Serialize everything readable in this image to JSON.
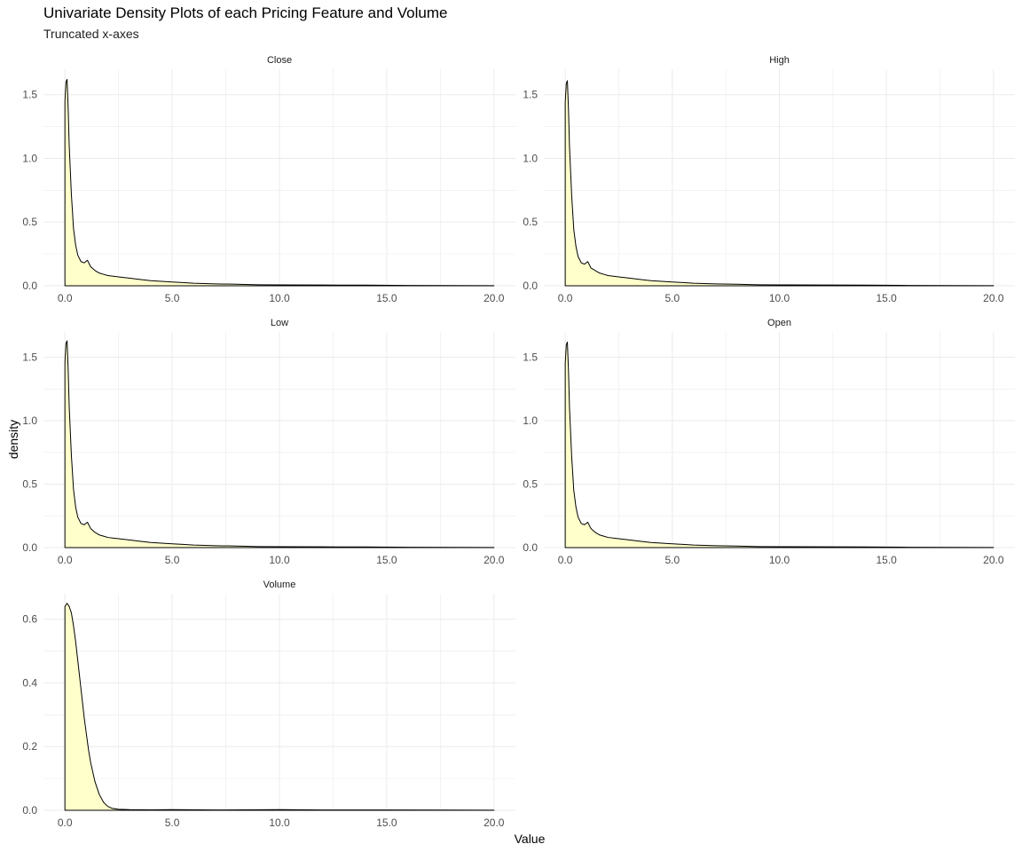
{
  "title": "Univariate Density Plots of each Pricing Feature and Volume",
  "subtitle": "Truncated x-axes",
  "colors": {
    "fill": "#ffffcc",
    "line": "#000000",
    "grid": "#ebebeb",
    "tick_text": "#4d4d4d"
  },
  "chart_data": {
    "type": "area",
    "layout": "facet-wrap",
    "xlabel": "Value",
    "ylabel": "density",
    "grid": true,
    "legend": "none",
    "x_ticks": [
      "0.0",
      "5.0",
      "10.0",
      "15.0",
      "20.0"
    ],
    "xlim": [
      -1,
      21
    ],
    "panels": [
      {
        "name": "Close",
        "ylim": [
          0,
          1.7
        ],
        "y_ticks": [
          0,
          0.5,
          1.0,
          1.5
        ],
        "y_tick_labels": [
          "0.0",
          "0.5",
          "1.0",
          "1.5"
        ],
        "x": [
          0,
          0.05,
          0.1,
          0.15,
          0.2,
          0.3,
          0.4,
          0.5,
          0.6,
          0.75,
          0.9,
          1.05,
          1.2,
          1.4,
          1.6,
          1.8,
          2.0,
          2.5,
          3.0,
          3.5,
          4.0,
          4.5,
          5.0,
          5.5,
          6.0,
          7.0,
          8.0,
          9.0,
          10.0,
          12.0,
          14.0,
          16.0,
          18.0,
          20.0
        ],
        "y": [
          1.45,
          1.6,
          1.62,
          1.4,
          1.1,
          0.72,
          0.45,
          0.32,
          0.24,
          0.19,
          0.18,
          0.2,
          0.15,
          0.12,
          0.1,
          0.09,
          0.08,
          0.07,
          0.06,
          0.05,
          0.04,
          0.035,
          0.03,
          0.025,
          0.02,
          0.015,
          0.012,
          0.008,
          0.007,
          0.006,
          0.005,
          0.003,
          0.002,
          0.001
        ]
      },
      {
        "name": "High",
        "ylim": [
          0,
          1.7
        ],
        "y_ticks": [
          0,
          0.5,
          1.0,
          1.5
        ],
        "y_tick_labels": [
          "0.0",
          "0.5",
          "1.0",
          "1.5"
        ],
        "x": [
          0,
          0.05,
          0.1,
          0.15,
          0.2,
          0.3,
          0.4,
          0.5,
          0.6,
          0.75,
          0.9,
          1.05,
          1.2,
          1.4,
          1.6,
          1.8,
          2.0,
          2.5,
          3.0,
          3.5,
          4.0,
          4.5,
          5.0,
          5.5,
          6.0,
          7.0,
          8.0,
          9.0,
          10.0,
          12.0,
          14.0,
          16.0,
          18.0,
          20.0
        ],
        "y": [
          1.44,
          1.59,
          1.61,
          1.39,
          1.09,
          0.71,
          0.44,
          0.31,
          0.23,
          0.18,
          0.17,
          0.19,
          0.14,
          0.12,
          0.1,
          0.09,
          0.08,
          0.07,
          0.06,
          0.05,
          0.04,
          0.035,
          0.03,
          0.025,
          0.02,
          0.015,
          0.012,
          0.008,
          0.007,
          0.006,
          0.005,
          0.003,
          0.002,
          0.001
        ]
      },
      {
        "name": "Low",
        "ylim": [
          0,
          1.7
        ],
        "y_ticks": [
          0,
          0.5,
          1.0,
          1.5
        ],
        "y_tick_labels": [
          "0.0",
          "0.5",
          "1.0",
          "1.5"
        ],
        "x": [
          0,
          0.05,
          0.1,
          0.15,
          0.2,
          0.3,
          0.4,
          0.5,
          0.6,
          0.75,
          0.9,
          1.05,
          1.2,
          1.4,
          1.6,
          1.8,
          2.0,
          2.5,
          3.0,
          3.5,
          4.0,
          4.5,
          5.0,
          5.5,
          6.0,
          7.0,
          8.0,
          9.0,
          10.0,
          12.0,
          14.0,
          16.0,
          18.0,
          20.0
        ],
        "y": [
          1.46,
          1.61,
          1.63,
          1.41,
          1.11,
          0.73,
          0.46,
          0.32,
          0.24,
          0.19,
          0.18,
          0.2,
          0.15,
          0.12,
          0.1,
          0.09,
          0.08,
          0.07,
          0.06,
          0.05,
          0.04,
          0.035,
          0.03,
          0.025,
          0.02,
          0.015,
          0.012,
          0.008,
          0.007,
          0.006,
          0.005,
          0.003,
          0.002,
          0.001
        ]
      },
      {
        "name": "Open",
        "ylim": [
          0,
          1.7
        ],
        "y_ticks": [
          0,
          0.5,
          1.0,
          1.5
        ],
        "y_tick_labels": [
          "0.0",
          "0.5",
          "1.0",
          "1.5"
        ],
        "x": [
          0,
          0.05,
          0.1,
          0.15,
          0.2,
          0.3,
          0.4,
          0.5,
          0.6,
          0.75,
          0.9,
          1.05,
          1.2,
          1.4,
          1.6,
          1.8,
          2.0,
          2.5,
          3.0,
          3.5,
          4.0,
          4.5,
          5.0,
          5.5,
          6.0,
          7.0,
          8.0,
          9.0,
          10.0,
          12.0,
          14.0,
          16.0,
          18.0,
          20.0
        ],
        "y": [
          1.45,
          1.6,
          1.62,
          1.4,
          1.1,
          0.72,
          0.45,
          0.32,
          0.24,
          0.19,
          0.18,
          0.2,
          0.15,
          0.12,
          0.1,
          0.09,
          0.08,
          0.07,
          0.06,
          0.05,
          0.04,
          0.035,
          0.03,
          0.025,
          0.02,
          0.015,
          0.012,
          0.008,
          0.007,
          0.006,
          0.005,
          0.003,
          0.002,
          0.001
        ]
      },
      {
        "name": "Volume",
        "ylim": [
          0,
          0.68
        ],
        "y_ticks": [
          0,
          0.2,
          0.4,
          0.6
        ],
        "y_tick_labels": [
          "0.0",
          "0.2",
          "0.4",
          "0.6"
        ],
        "x": [
          0,
          0.1,
          0.2,
          0.3,
          0.4,
          0.5,
          0.6,
          0.7,
          0.8,
          0.9,
          1.0,
          1.1,
          1.2,
          1.4,
          1.6,
          1.8,
          2.0,
          2.2,
          2.5,
          3.0,
          4.0,
          5.0,
          7.0,
          10.0,
          12.0,
          15.0,
          20.0
        ],
        "y": [
          0.64,
          0.65,
          0.64,
          0.62,
          0.58,
          0.53,
          0.47,
          0.41,
          0.35,
          0.29,
          0.24,
          0.19,
          0.15,
          0.09,
          0.05,
          0.025,
          0.012,
          0.006,
          0.003,
          0.002,
          0.0015,
          0.002,
          0.001,
          0.002,
          0.001,
          0.001,
          0.0005
        ]
      }
    ]
  }
}
